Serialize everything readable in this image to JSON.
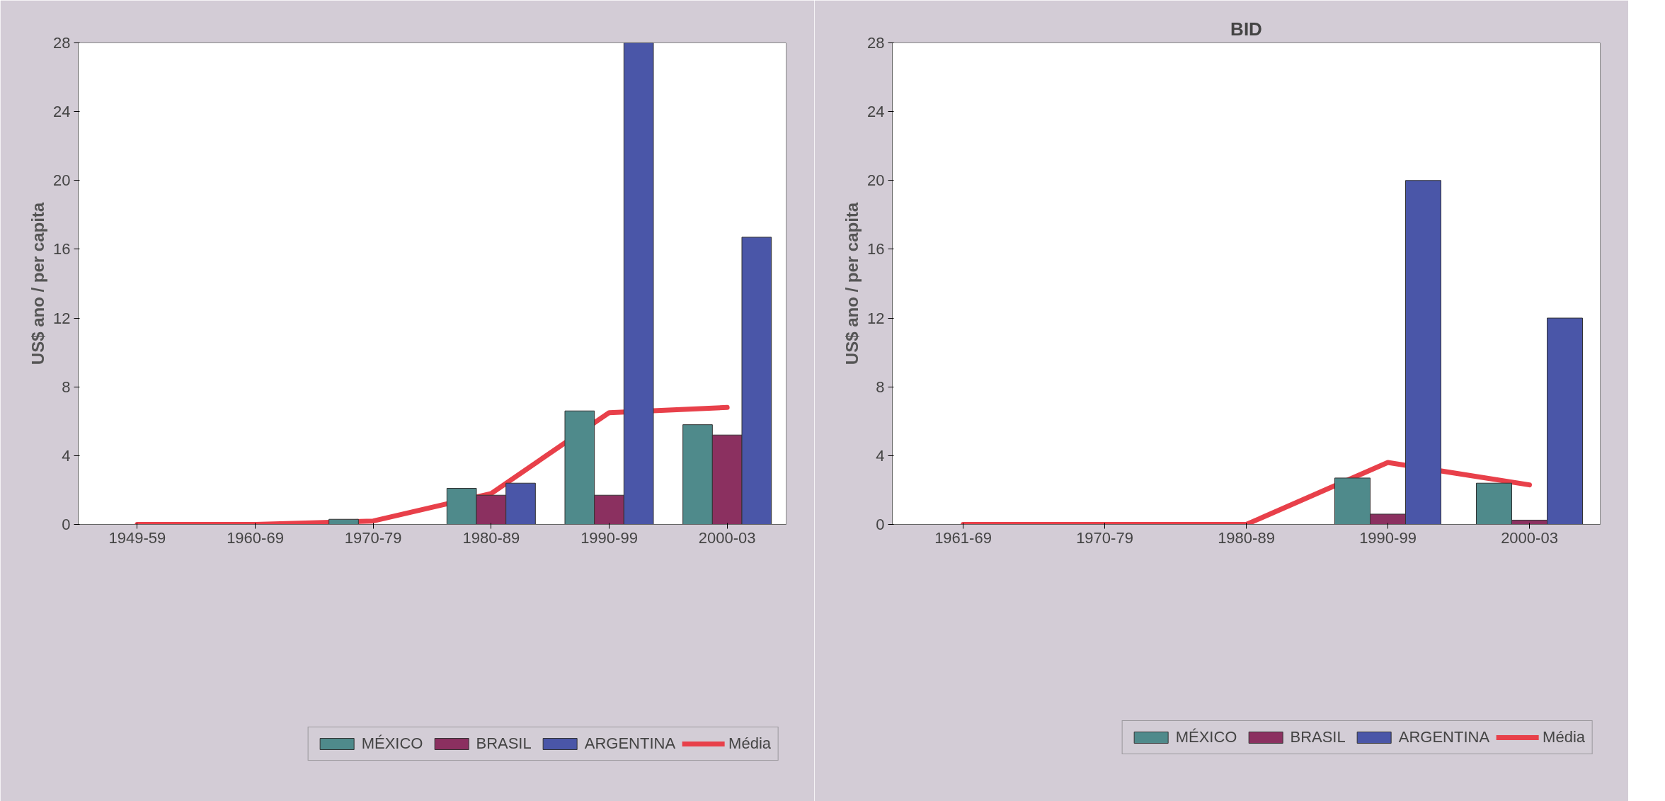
{
  "chart_data": [
    {
      "type": "bar",
      "ylabel": "US$ ano / per capita",
      "categories": [
        "1949-59",
        "1960-69",
        "1970-79",
        "1980-89",
        "1990-99",
        "2000-03"
      ],
      "ylim": [
        0,
        28
      ],
      "yticks": [
        0,
        4,
        8,
        12,
        16,
        20,
        24,
        28
      ],
      "grid": false,
      "legend": "bottom",
      "series": [
        {
          "name": "MÉXICO",
          "color": "#4f8a8b",
          "values": [
            null,
            null,
            0.3,
            2.1,
            6.6,
            5.8
          ]
        },
        {
          "name": "BRASIL",
          "color": "#8b3060",
          "values": [
            null,
            null,
            null,
            1.7,
            1.7,
            5.2
          ]
        },
        {
          "name": "ARGENTINA",
          "color": "#4a56a8",
          "values": [
            null,
            null,
            null,
            2.4,
            28,
            16.7
          ]
        },
        {
          "name": "Média",
          "type": "line",
          "color": "#e8404a",
          "values": [
            0,
            0,
            0.2,
            1.8,
            6.5,
            6.8
          ]
        }
      ]
    },
    {
      "type": "bar",
      "title": "BID",
      "ylabel": "US$ ano / per capita",
      "categories": [
        "1961-69",
        "1970-79",
        "1980-89",
        "1990-99",
        "2000-03"
      ],
      "ylim": [
        0,
        28
      ],
      "yticks": [
        0,
        4,
        8,
        12,
        16,
        20,
        24,
        28
      ],
      "grid": false,
      "legend": "bottom",
      "series": [
        {
          "name": "MÉXICO",
          "color": "#4f8a8b",
          "values": [
            null,
            null,
            null,
            2.7,
            2.4
          ]
        },
        {
          "name": "BRASIL",
          "color": "#8b3060",
          "values": [
            null,
            null,
            null,
            0.6,
            0.25
          ]
        },
        {
          "name": "ARGENTINA",
          "color": "#4a56a8",
          "values": [
            null,
            null,
            null,
            20,
            12
          ]
        },
        {
          "name": "Média",
          "type": "line",
          "color": "#e8404a",
          "values": [
            0,
            0,
            0,
            3.6,
            2.3
          ]
        }
      ]
    }
  ]
}
